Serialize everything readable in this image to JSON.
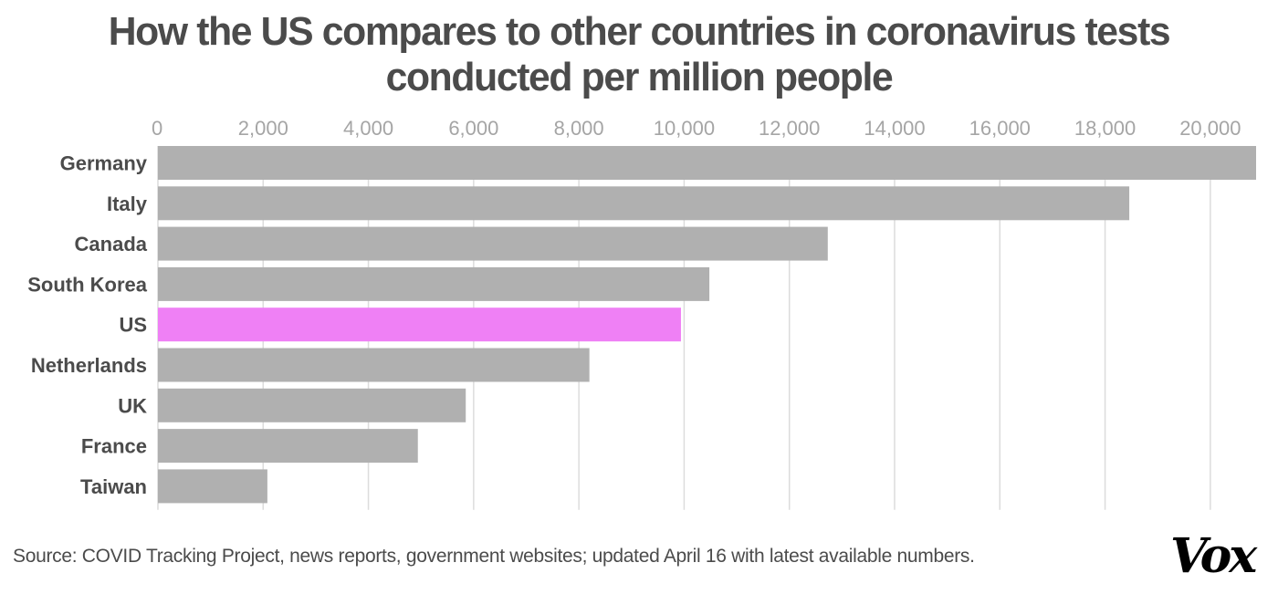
{
  "chart_data": {
    "type": "bar",
    "orientation": "horizontal",
    "title": "How the US compares to other countries in coronavirus tests conducted per million people",
    "title_lines": [
      "How the US compares to other countries in coronavirus tests",
      "conducted per million people"
    ],
    "xlabel": "",
    "ylabel": "",
    "xlim": [
      0,
      20870
    ],
    "x_ticks": [
      0,
      2000,
      4000,
      6000,
      8000,
      10000,
      12000,
      14000,
      16000,
      18000,
      20000
    ],
    "x_tick_labels": [
      "0",
      "2,000",
      "4,000",
      "6,000",
      "8,000",
      "10,000",
      "12,000",
      "14,000",
      "16,000",
      "18,000",
      "20,000"
    ],
    "x_axis_position": "top",
    "grid": true,
    "categories": [
      "Germany",
      "Italy",
      "Canada",
      "South Korea",
      "US",
      "Netherlands",
      "UK",
      "France",
      "Taiwan"
    ],
    "values": [
      20870,
      18460,
      12730,
      10480,
      9940,
      8200,
      5850,
      4940,
      2080
    ],
    "highlight": "US",
    "colors": {
      "bar": "#b0b0b0",
      "highlight": "#ef80f5",
      "grid": "#dcdcdc",
      "tick_text": "#a5a5a5",
      "label_text": "#4b4b4b"
    }
  },
  "footer": {
    "source": "Source: COVID Tracking Project, news reports, government websites; updated April 16 with latest available numbers.",
    "logo": "Vox"
  }
}
